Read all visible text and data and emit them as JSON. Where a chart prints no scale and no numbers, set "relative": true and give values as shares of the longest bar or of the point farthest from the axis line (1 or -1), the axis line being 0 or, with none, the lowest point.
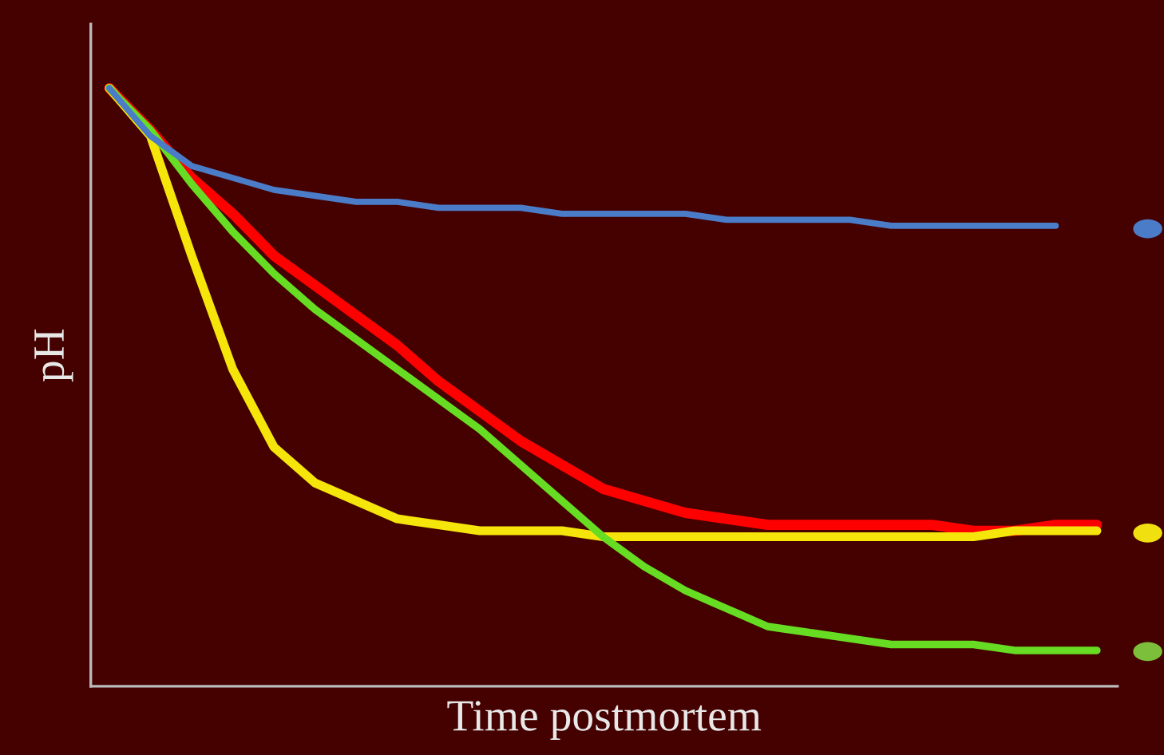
{
  "chart_data": {
    "type": "line",
    "relative": true,
    "xlabel": "Time postmortem",
    "ylabel": "pH",
    "grid": false,
    "legend": false,
    "marker": "none",
    "line_style": "solid",
    "tick_labels": false,
    "categories": [
      null,
      null,
      null,
      null,
      null,
      null,
      null,
      null,
      null,
      null,
      null,
      null,
      null,
      null,
      null,
      null,
      null,
      null,
      null,
      null,
      null,
      null,
      null,
      null,
      null
    ],
    "series": [
      {
        "color": "#ff0000",
        "values": [
          1.0,
          0.93,
          0.85,
          0.79,
          0.72,
          0.67,
          0.62,
          0.57,
          0.51,
          0.46,
          0.41,
          0.37,
          0.33,
          0.31,
          0.29,
          0.28,
          0.27,
          0.27,
          0.27,
          0.27,
          0.27,
          0.26,
          0.26,
          0.27,
          0.27
        ]
      },
      {
        "color": "#f5e50a",
        "values": [
          1.0,
          0.92,
          0.72,
          0.53,
          0.4,
          0.34,
          0.31,
          0.28,
          0.27,
          0.26,
          0.26,
          0.26,
          0.25,
          0.25,
          0.25,
          0.25,
          0.25,
          0.25,
          0.25,
          0.25,
          0.25,
          0.25,
          0.26,
          0.26,
          0.26
        ]
      },
      {
        "color": "#66dd22",
        "values": [
          1.0,
          0.93,
          0.84,
          0.76,
          0.69,
          0.63,
          0.58,
          0.53,
          0.48,
          0.43,
          0.37,
          0.31,
          0.25,
          0.2,
          0.16,
          0.13,
          0.1,
          0.09,
          0.08,
          0.07,
          0.07,
          0.07,
          0.06,
          0.06,
          0.06
        ]
      },
      {
        "color": "#4a7cc8",
        "values": [
          1.0,
          0.92,
          0.87,
          0.85,
          0.83,
          0.82,
          0.81,
          0.81,
          0.8,
          0.8,
          0.8,
          0.79,
          0.79,
          0.79,
          0.79,
          0.78,
          0.78,
          0.78,
          0.78,
          0.77,
          0.77,
          0.77,
          0.77,
          0.77,
          null
        ]
      }
    ]
  }
}
